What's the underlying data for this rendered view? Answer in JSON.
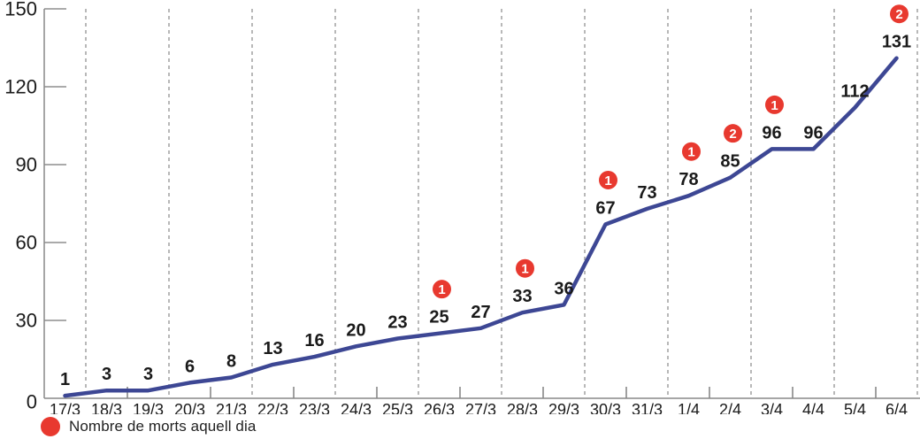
{
  "chart_data": {
    "type": "line",
    "categories": [
      "17/3",
      "18/3",
      "19/3",
      "20/3",
      "21/3",
      "22/3",
      "23/3",
      "24/3",
      "25/3",
      "26/3",
      "27/3",
      "28/3",
      "29/3",
      "30/3",
      "31/3",
      "1/4",
      "2/4",
      "3/4",
      "4/4",
      "5/4",
      "6/4"
    ],
    "values": [
      1,
      3,
      3,
      6,
      8,
      13,
      16,
      20,
      23,
      25,
      27,
      33,
      36,
      67,
      73,
      78,
      85,
      96,
      96,
      112,
      131
    ],
    "deaths": [
      null,
      null,
      null,
      null,
      null,
      null,
      null,
      null,
      null,
      1,
      null,
      1,
      null,
      1,
      null,
      1,
      2,
      1,
      null,
      null,
      2
    ],
    "title": "",
    "xlabel": "",
    "ylabel": "",
    "ylim": [
      0,
      150
    ],
    "yticks": [
      0,
      30,
      60,
      90,
      120,
      150
    ],
    "grid": "dashed-vertical-every-2-days",
    "legend_position": "bottom-left",
    "legend_label": "Nombre de morts aquell dia",
    "colors": {
      "line": "#3d4794",
      "death_badge": "#e8392f",
      "badge_number": "#ffffff",
      "value_label": "#1a1a1a",
      "axis": "#888888",
      "tick": "#777777",
      "grid_dash": "#9a9a9a",
      "axis_label": "#1a1a1a"
    }
  }
}
